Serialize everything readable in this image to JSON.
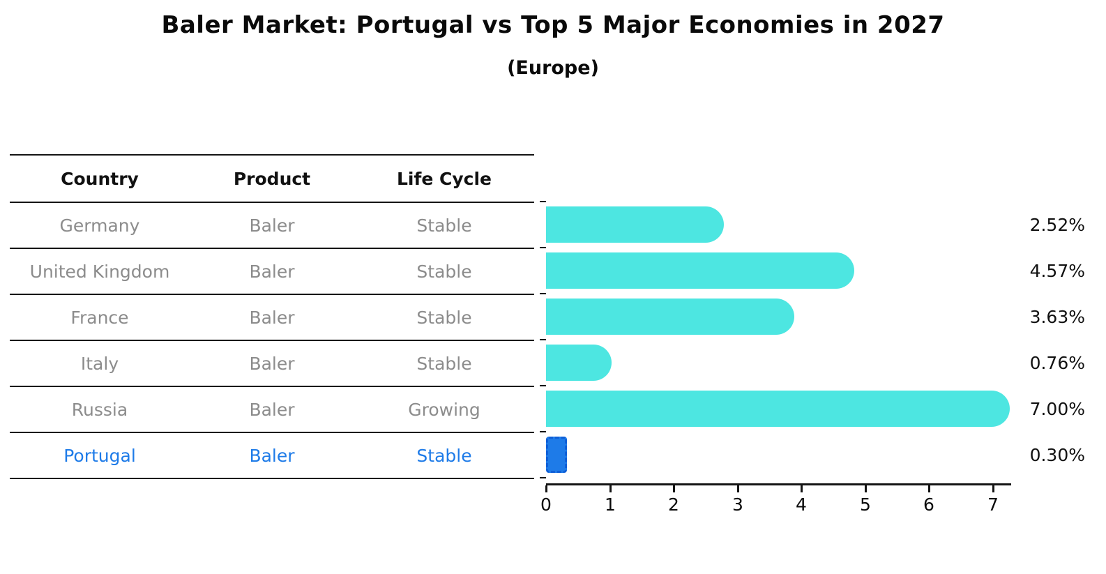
{
  "title": "Baler Market: Portugal vs Top 5 Major Economies in 2027",
  "subtitle": "(Europe)",
  "table": {
    "headers": [
      "Country",
      "Product",
      "Life Cycle"
    ],
    "rows": [
      {
        "country": "Germany",
        "product": "Baler",
        "life_cycle": "Stable",
        "highlight": false
      },
      {
        "country": "United Kingdom",
        "product": "Baler",
        "life_cycle": "Stable",
        "highlight": false
      },
      {
        "country": "France",
        "product": "Baler",
        "life_cycle": "Stable",
        "highlight": false
      },
      {
        "country": "Italy",
        "product": "Baler",
        "life_cycle": "Stable",
        "highlight": false
      },
      {
        "country": "Russia",
        "product": "Baler",
        "life_cycle": "Growing",
        "highlight": false
      },
      {
        "country": "Portugal",
        "product": "Baler",
        "life_cycle": "Stable",
        "highlight": true
      }
    ]
  },
  "chart_data": {
    "type": "bar",
    "orientation": "horizontal",
    "title": "Baler Market: Portugal vs Top 5 Major Economies in 2027",
    "subtitle": "(Europe)",
    "categories": [
      "Germany",
      "United Kingdom",
      "France",
      "Italy",
      "Russia",
      "Portugal"
    ],
    "values": [
      2.52,
      4.57,
      3.63,
      0.76,
      7.0,
      0.3
    ],
    "value_labels": [
      "2.52%",
      "4.57%",
      "3.63%",
      "0.76%",
      "7.00%",
      "0.30%"
    ],
    "xlabel": "",
    "ylabel": "",
    "xlim": [
      0,
      7.3
    ],
    "xticks": [
      "0",
      "1",
      "2",
      "3",
      "4",
      "5",
      "6",
      "7"
    ],
    "grid": false,
    "legend": false,
    "bar_color": "#4DE6E1",
    "highlight_bar_color": "#1E7BE8",
    "highlight_index": 5
  },
  "colors": {
    "bar": "#4DE6E1",
    "highlight_fill": "#1E7BE8",
    "highlight_border": "#0F5FD7",
    "row_text": "#8C8C8C",
    "header_text": "#111111",
    "highlight_text": "#1E7BE8",
    "line": "#141414",
    "background": "#FFFFFF",
    "value_label_text": "#111111"
  }
}
